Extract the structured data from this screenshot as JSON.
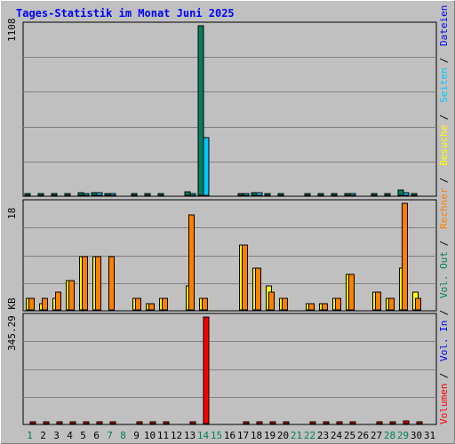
{
  "chart_data": {
    "type": "bar",
    "title": "Tages-Statistik im Monat Juni 2025",
    "days": [
      "1",
      "2",
      "3",
      "4",
      "5",
      "6",
      "7",
      "8",
      "9",
      "10",
      "11",
      "12",
      "13",
      "14",
      "15",
      "16",
      "17",
      "18",
      "19",
      "20",
      "21",
      "22",
      "23",
      "24",
      "25",
      "26",
      "27",
      "28",
      "29",
      "30",
      "31"
    ],
    "weekend_days": [
      1,
      7,
      8,
      14,
      15,
      21,
      22,
      28,
      29
    ],
    "panels": [
      {
        "name": "requests",
        "max_label": "1108",
        "ylim": [
          0,
          1108
        ],
        "series": [
          {
            "name": "Anfragen",
            "color": "#00805c",
            "values": [
              12,
              12,
              12,
              12,
              18,
              18,
              14,
              0,
              12,
              12,
              12,
              0,
              25,
              1108,
              0,
              0,
              14,
              18,
              12,
              12,
              0,
              10,
              10,
              12,
              14,
              0,
              8,
              10,
              35,
              10,
              0
            ]
          },
          {
            "name": "Dateien",
            "color": "#0000ff",
            "values": [
              0,
              0,
              0,
              0,
              0,
              0,
              0,
              0,
              0,
              0,
              0,
              0,
              0,
              0,
              0,
              0,
              0,
              0,
              0,
              0,
              0,
              0,
              0,
              0,
              0,
              0,
              0,
              0,
              0,
              0,
              0
            ]
          },
          {
            "name": "Seiten",
            "color": "#00c8ff",
            "values": [
              0,
              0,
              0,
              0,
              12,
              16,
              10,
              0,
              0,
              0,
              0,
              0,
              10,
              375,
              0,
              0,
              12,
              16,
              0,
              0,
              0,
              0,
              0,
              0,
              10,
              0,
              0,
              0,
              15,
              0,
              0
            ]
          }
        ]
      },
      {
        "name": "visits",
        "max_label": "18",
        "ylim": [
          0,
          18
        ],
        "series": [
          {
            "name": "Besuche",
            "color": "#ffff00",
            "values": [
              2,
              1,
              2,
              5,
              9,
              9,
              0,
              0,
              2,
              1,
              2,
              0,
              4,
              2,
              0,
              0,
              11,
              7,
              4,
              2,
              0,
              1,
              1,
              2,
              6,
              0,
              3,
              2,
              7,
              3,
              0
            ]
          },
          {
            "name": "Rechner",
            "color": "#ff8000",
            "values": [
              2,
              2,
              3,
              5,
              9,
              9,
              9,
              0,
              2,
              1,
              2,
              0,
              16,
              2,
              0,
              0,
              11,
              7,
              3,
              2,
              0,
              1,
              1,
              2,
              6,
              0,
              3,
              2,
              18,
              2,
              0
            ]
          }
        ]
      },
      {
        "name": "volume",
        "max_label": "345.29 KB",
        "ylim": [
          0,
          345.29
        ],
        "series": [
          {
            "name": "Vol. Out",
            "color": "#00805c",
            "values": [
              0,
              0,
              0,
              0,
              0,
              0,
              0,
              0,
              0,
              0,
              0,
              0,
              0,
              0,
              0,
              0,
              0,
              0,
              0,
              0,
              0,
              0,
              0,
              0,
              0,
              0,
              0,
              0,
              0,
              0,
              0
            ]
          },
          {
            "name": "Vol. In",
            "color": "#0000ff",
            "values": [
              0,
              0,
              0,
              0,
              0,
              0,
              0,
              0,
              0,
              0,
              0,
              0,
              0,
              0,
              0,
              0,
              0,
              0,
              0,
              0,
              0,
              0,
              0,
              0,
              0,
              0,
              0,
              0,
              0,
              0,
              0
            ]
          },
          {
            "name": "Volumen",
            "color": "#ff0000",
            "values": [
              3,
              3,
              3,
              3,
              5,
              7,
              6,
              0,
              3,
              3,
              3,
              0,
              7,
              345.29,
              0,
              0,
              6,
              6,
              3,
              3,
              0,
              3,
              3,
              3,
              4,
              0,
              3,
              3,
              8,
              3,
              0
            ]
          }
        ]
      }
    ],
    "legend": [
      {
        "label": "Volumen",
        "color": "#ff0000"
      },
      {
        "label": "Vol. In",
        "color": "#0000ff"
      },
      {
        "label": "Vol. Out",
        "color": "#00805c"
      },
      {
        "label": "Rechner",
        "color": "#ff8000"
      },
      {
        "label": "Besuche",
        "color": "#ffff00"
      },
      {
        "label": "Seiten",
        "color": "#00c8ff"
      },
      {
        "label": "Dateien",
        "color": "#0000ff"
      },
      {
        "label": "Anfragen",
        "color": "#00805c"
      }
    ],
    "legend_separator": "/",
    "colors": {
      "background": "#c0c0c0",
      "title": "#0000ff",
      "weekday_label": "#000000",
      "weekend_label": "#00805c"
    }
  }
}
